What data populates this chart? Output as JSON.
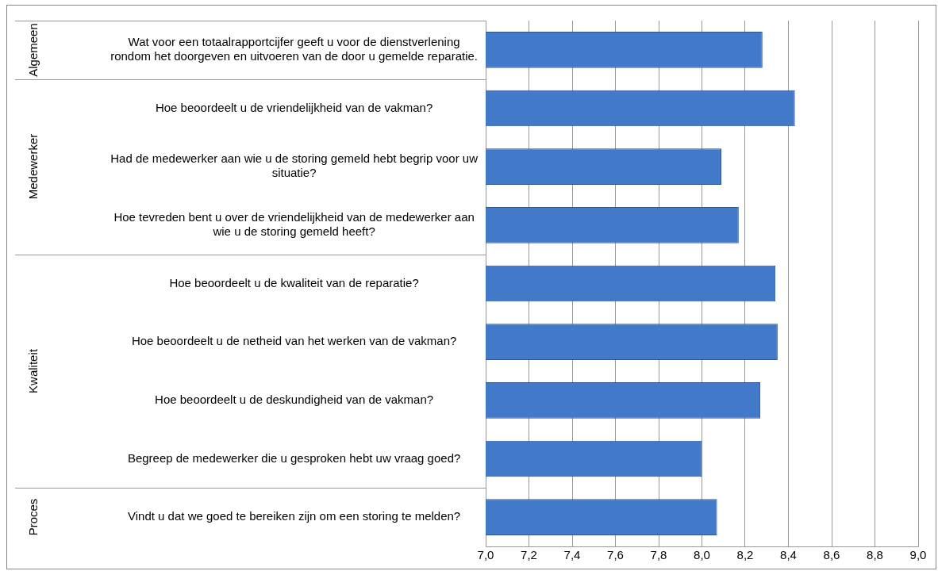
{
  "chart_data": {
    "type": "bar",
    "orientation": "horizontal",
    "categories": [
      "Wat voor een totaalrapportcijfer geeft u voor de dienstverlening rondom het doorgeven en uitvoeren van de door u gemelde reparatie.",
      "Hoe beoordeelt u de vriendelijkheid van de vakman?",
      "Had de medewerker aan wie u de storing gemeld hebt begrip voor uw situatie?",
      "Hoe tevreden bent u over de vriendelijkheid van de medewerker aan wie u de storing gemeld heeft?",
      "Hoe beoordeelt u de kwaliteit van de reparatie?",
      "Hoe beoordeelt u de netheid van het werken van de vakman?",
      "Hoe beoordeelt u de deskundigheid van de vakman?",
      "Begreep de medewerker die u gesproken hebt uw vraag goed?",
      "Vindt u dat we goed te bereiken zijn om een storing te melden?"
    ],
    "values": [
      8.28,
      8.43,
      8.09,
      8.17,
      8.34,
      8.35,
      8.27,
      8.0,
      8.07
    ],
    "color": "#4279c8",
    "xlim": [
      7,
      9
    ],
    "xticks": [
      {
        "value": 7,
        "label": "7,0"
      },
      {
        "value": 7.2,
        "label": "7,2"
      },
      {
        "value": 7.4,
        "label": "7,4"
      },
      {
        "value": 7.6,
        "label": "7,6"
      },
      {
        "value": 7.8,
        "label": "7,8"
      },
      {
        "value": 8,
        "label": "8,0"
      },
      {
        "value": 8.2,
        "label": "8,2"
      },
      {
        "value": 8.4,
        "label": "8,4"
      },
      {
        "value": 8.6,
        "label": "8,6"
      },
      {
        "value": 8.8,
        "label": "8,8"
      },
      {
        "value": 9,
        "label": "9,0"
      }
    ],
    "grid": "x",
    "annotations": [
      "Algemeen",
      "Medewerker",
      "Kwaliteit",
      "Proces"
    ]
  }
}
